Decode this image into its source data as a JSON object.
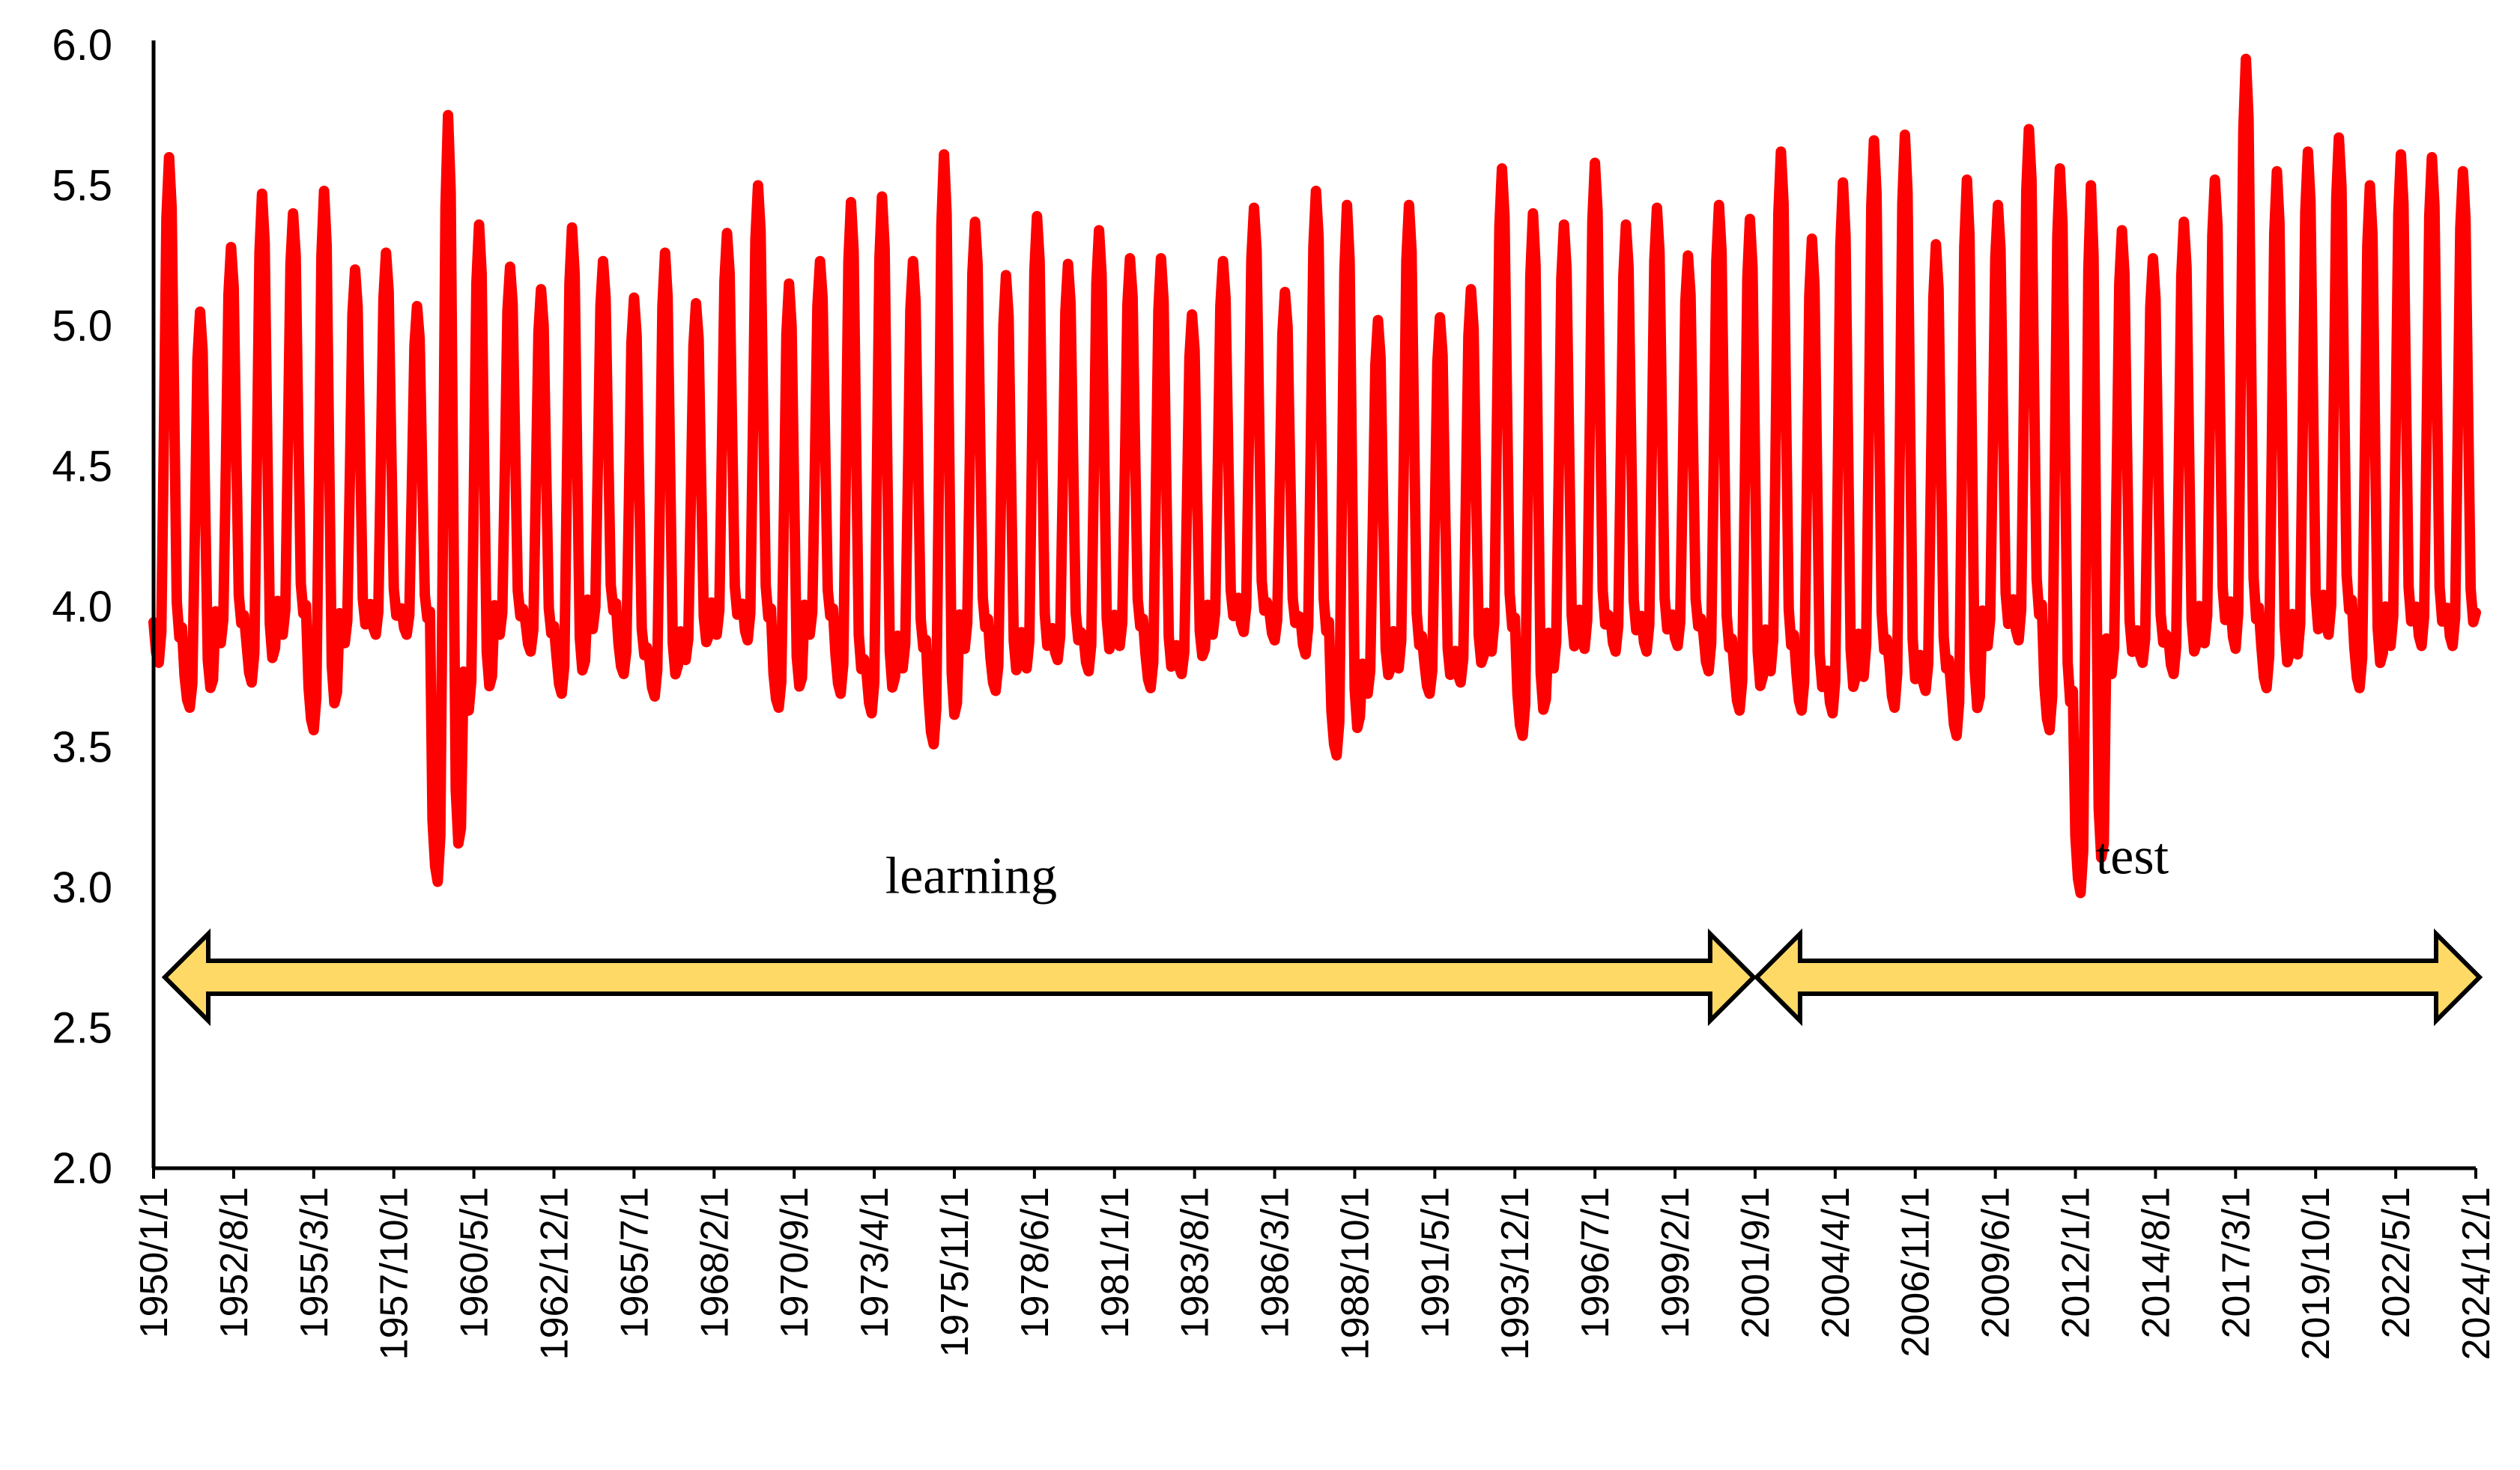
{
  "chart_data": {
    "type": "line",
    "ylim": [
      2.0,
      6.0
    ],
    "yticks": [
      "2.0",
      "2.5",
      "3.0",
      "3.5",
      "4.0",
      "4.5",
      "5.0",
      "5.5",
      "6.0"
    ],
    "xticks": [
      "1950/1/1",
      "1952/8/1",
      "1955/3/1",
      "1957/10/1",
      "1960/5/1",
      "1962/12/1",
      "1965/7/1",
      "1968/2/1",
      "1970/9/1",
      "1973/4/1",
      "1975/11/1",
      "1978/6/1",
      "1981/1/1",
      "1983/8/1",
      "1986/3/1",
      "1988/10/1",
      "1991/5/1",
      "1993/12/1",
      "1996/7/1",
      "1999/2/1",
      "2001/9/1",
      "2004/4/1",
      "2006/11/1",
      "2009/6/1",
      "2012/1/1",
      "2014/8/1",
      "2017/3/1",
      "2019/10/1",
      "2022/5/1",
      "2024/12/1"
    ],
    "x_start": "1950-01",
    "x_end": "2024-12",
    "frequency": "monthly",
    "series": [
      {
        "color": "#ff0000",
        "annual_peaks": [
          5.6,
          5.05,
          5.28,
          5.47,
          5.4,
          5.48,
          5.2,
          5.26,
          5.07,
          5.75,
          5.36,
          5.21,
          5.13,
          5.35,
          5.23,
          5.1,
          5.26,
          5.08,
          5.33,
          5.5,
          5.15,
          5.23,
          5.44,
          5.46,
          5.23,
          5.61,
          5.37,
          5.18,
          5.39,
          5.22,
          5.34,
          5.24,
          5.24,
          5.04,
          5.23,
          5.42,
          5.12,
          5.48,
          5.43,
          5.02,
          5.43,
          5.03,
          5.13,
          5.56,
          5.4,
          5.36,
          5.58,
          5.36,
          5.42,
          5.25,
          5.43,
          5.38,
          5.62,
          5.31,
          5.51,
          5.66,
          5.68,
          5.29,
          5.52,
          5.43,
          5.7,
          5.56,
          5.5,
          5.34,
          5.24,
          5.37,
          5.52,
          5.95,
          5.55,
          5.62,
          5.67,
          5.5,
          5.61,
          5.6,
          5.55
        ],
        "annual_troughs": [
          3.8,
          3.64,
          3.87,
          3.73,
          3.9,
          3.56,
          3.87,
          3.9,
          3.9,
          3.02,
          3.63,
          3.9,
          3.84,
          3.69,
          3.92,
          3.76,
          3.68,
          3.81,
          3.9,
          3.88,
          3.64,
          3.9,
          3.69,
          3.62,
          3.78,
          3.51,
          3.85,
          3.7,
          3.78,
          3.81,
          3.77,
          3.86,
          3.71,
          3.76,
          3.9,
          3.91,
          3.88,
          3.83,
          3.47,
          3.69,
          3.78,
          3.69,
          3.73,
          3.84,
          3.54,
          3.78,
          3.85,
          3.84,
          3.84,
          3.86,
          3.77,
          3.63,
          3.77,
          3.63,
          3.62,
          3.75,
          3.64,
          3.7,
          3.54,
          3.86,
          3.88,
          3.56,
          2.98,
          3.76,
          3.8,
          3.76,
          3.87,
          3.85,
          3.71,
          3.83,
          3.9,
          3.71,
          3.86,
          3.86,
          3.86
        ]
      }
    ],
    "annotations": [
      {
        "text": "learning",
        "from": "1950/1/1",
        "to": "2001/9/1"
      },
      {
        "text": "test",
        "from": "2001/9/1",
        "to": "2024/12/1"
      }
    ]
  }
}
